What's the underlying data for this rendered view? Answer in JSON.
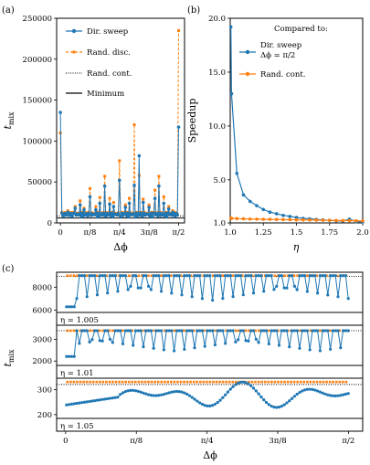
{
  "panels": {
    "a": {
      "label": "(a)"
    },
    "b": {
      "label": "(b)"
    },
    "c": {
      "label": "(c)"
    }
  },
  "colors": {
    "blue": "#1f77b4",
    "orange": "#ff7f0e",
    "black": "#000000"
  },
  "chart_data": [
    {
      "id": "a",
      "type": "line",
      "xlabel": "Δϕ",
      "ylabel": "t_mix",
      "xlim": [
        -0.05,
        1.65
      ],
      "ylim": [
        0,
        250000
      ],
      "x_ticks": [
        0,
        0.3927,
        0.7854,
        1.1781,
        1.5708
      ],
      "x_tick_labels": [
        "0",
        "π/8",
        "π/4",
        "3π/8",
        "π/2"
      ],
      "y_ticks": [
        0,
        50000,
        100000,
        150000,
        200000,
        250000
      ],
      "y_tick_labels": [
        "0",
        "50000",
        "100000",
        "150000",
        "200000",
        "250000"
      ],
      "legend": [
        "Dir. sweep",
        "Rand. disc.",
        "Rand. cont.",
        "Minimum"
      ],
      "legend_position": "upper-left",
      "series": [
        {
          "name": "Dir. sweep",
          "style": "solid-dots",
          "color": "#1f77b4",
          "spikes_x": [
            0,
            0.098,
            0.196,
            0.262,
            0.314,
            0.393,
            0.471,
            0.524,
            0.589,
            0.655,
            0.707,
            0.785,
            0.864,
            0.916,
            0.982,
            1.047,
            1.1,
            1.178,
            1.257,
            1.309,
            1.374,
            1.44,
            1.492,
            1.571
          ],
          "spikes_y": [
            135000,
            13000,
            18000,
            22000,
            16000,
            32000,
            16000,
            24000,
            45000,
            23000,
            20000,
            52000,
            19000,
            24000,
            46000,
            82000,
            25000,
            19000,
            30000,
            45000,
            24000,
            17000,
            13000,
            117000
          ],
          "baseline": 9000
        },
        {
          "name": "Rand. disc.",
          "style": "dashed-dots",
          "color": "#ff7f0e",
          "spikes_x": [
            0,
            0.098,
            0.196,
            0.262,
            0.314,
            0.393,
            0.471,
            0.524,
            0.589,
            0.655,
            0.707,
            0.785,
            0.864,
            0.916,
            0.982,
            1.047,
            1.1,
            1.178,
            1.257,
            1.309,
            1.374,
            1.44,
            1.492,
            1.571
          ],
          "spikes_y": [
            110000,
            15000,
            20000,
            27000,
            18000,
            42000,
            20000,
            31000,
            57000,
            30000,
            25000,
            76000,
            22000,
            30000,
            120000,
            58000,
            29000,
            22000,
            40000,
            57000,
            32000,
            20000,
            15000,
            235000
          ],
          "baseline": 10000
        },
        {
          "name": "Rand. cont.",
          "style": "dotted",
          "color": "#000000",
          "y": 8500
        },
        {
          "name": "Minimum",
          "style": "solid",
          "color": "#000000",
          "y": 6000
        }
      ]
    },
    {
      "id": "b",
      "type": "line",
      "xlabel": "η",
      "ylabel": "Speedup",
      "xlim": [
        1.0,
        2.0
      ],
      "ylim": [
        1.0,
        20.0
      ],
      "x_ticks": [
        1.0,
        1.25,
        1.5,
        1.75,
        2.0
      ],
      "x_tick_labels": [
        "1.0",
        "1.25",
        "1.5",
        "1.75",
        "2.0"
      ],
      "y_ticks": [
        1.0,
        5.0,
        10.0,
        15.0,
        20.0
      ],
      "y_tick_labels": [
        "1.0",
        "5.0",
        "10.0",
        "15.0",
        "20.0"
      ],
      "legend_title": "Compared to:",
      "legend": [
        "Dir. sweep",
        "Δϕ = π/2",
        "Rand. cont."
      ],
      "legend_position": "upper-right",
      "series": [
        {
          "name": "Dir. sweep Δϕ = π/2",
          "color": "#1f77b4",
          "x": [
            1.005,
            1.01,
            1.05,
            1.1,
            1.15,
            1.2,
            1.25,
            1.3,
            1.35,
            1.4,
            1.45,
            1.5,
            1.55,
            1.6,
            1.65,
            1.7,
            1.75,
            1.8,
            1.85,
            1.9,
            1.95,
            2.0
          ],
          "y": [
            19.2,
            13.0,
            5.6,
            3.6,
            3.0,
            2.6,
            2.25,
            2.0,
            1.85,
            1.7,
            1.6,
            1.5,
            1.42,
            1.38,
            1.32,
            1.28,
            1.24,
            1.2,
            1.18,
            1.35,
            1.12,
            1.1
          ]
        },
        {
          "name": "Rand. cont.",
          "color": "#ff7f0e",
          "x": [
            1.005,
            1.01,
            1.05,
            1.1,
            1.15,
            1.2,
            1.25,
            1.3,
            1.35,
            1.4,
            1.45,
            1.5,
            1.55,
            1.6,
            1.65,
            1.7,
            1.75,
            1.8,
            1.85,
            1.9,
            1.95,
            2.0
          ],
          "y": [
            1.45,
            1.42,
            1.4,
            1.38,
            1.36,
            1.35,
            1.34,
            1.33,
            1.32,
            1.31,
            1.3,
            1.29,
            1.28,
            1.27,
            1.26,
            1.25,
            1.24,
            1.23,
            1.22,
            1.21,
            1.2,
            1.19
          ]
        }
      ]
    },
    {
      "id": "c",
      "type": "line",
      "xlabel": "Δϕ",
      "ylabel": "t_mix",
      "xlim": [
        -0.05,
        1.65
      ],
      "x_ticks": [
        0,
        0.3927,
        0.7854,
        1.1781,
        1.5708
      ],
      "x_tick_labels": [
        "0",
        "π/8",
        "π/4",
        "3π/8",
        "π/2"
      ],
      "subplots": [
        {
          "eta_label": "η = 1.005",
          "ylim": [
            5800,
            9300
          ],
          "y_ticks": [
            6000,
            8000
          ],
          "y_tick_labels": [
            "6000",
            "8000"
          ],
          "rand_cont": 8950,
          "top": 9000,
          "low": 6150
        },
        {
          "eta_label": "η = 1.01",
          "ylim": [
            1800,
            3650
          ],
          "y_ticks": [
            2000,
            3000
          ],
          "y_tick_labels": [
            "2000",
            "3000"
          ],
          "rand_cont": 3400,
          "top": 3400,
          "low": 2150
        },
        {
          "eta_label": "η = 1.05",
          "ylim": [
            185,
            345
          ],
          "y_ticks": [
            200,
            300
          ],
          "y_tick_labels": [
            "200",
            "300"
          ],
          "rand_cont": 320,
          "top": 330,
          "low": 222
        }
      ]
    }
  ]
}
